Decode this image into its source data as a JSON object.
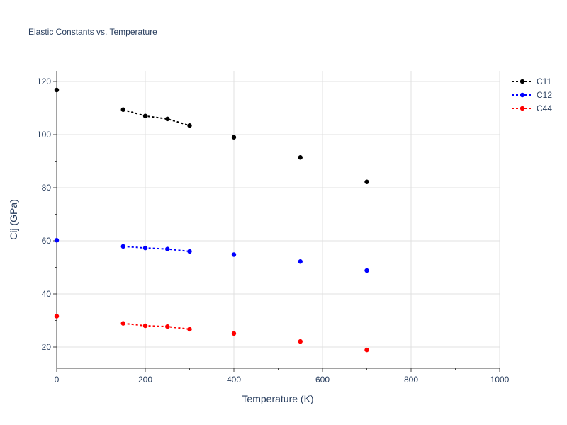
{
  "chart_data": {
    "type": "line",
    "title": "Elastic Constants vs. Temperature",
    "xlabel": "Temperature (K)",
    "ylabel": "Cij (GPa)",
    "xlim": [
      0,
      1000
    ],
    "ylim": [
      12,
      124
    ],
    "xticks": [
      0,
      200,
      400,
      600,
      800,
      1000
    ],
    "yticks": [
      20,
      40,
      60,
      80,
      100,
      120
    ],
    "grid": true,
    "legend_position": "top-right",
    "series": [
      {
        "name": "C11",
        "color": "#000000",
        "line_style": "dotted",
        "points": [
          {
            "x": 0,
            "y": 116.8,
            "connected": false
          },
          {
            "x": 150,
            "y": 109.4,
            "connected": true
          },
          {
            "x": 200,
            "y": 107.0,
            "connected": true
          },
          {
            "x": 250,
            "y": 105.9,
            "connected": true
          },
          {
            "x": 300,
            "y": 103.4,
            "connected": true
          },
          {
            "x": 400,
            "y": 99.0,
            "connected": false
          },
          {
            "x": 550,
            "y": 91.4,
            "connected": false
          },
          {
            "x": 700,
            "y": 82.2,
            "connected": false
          }
        ]
      },
      {
        "name": "C12",
        "color": "#0000ff",
        "line_style": "dotted",
        "points": [
          {
            "x": 0,
            "y": 60.2,
            "connected": false
          },
          {
            "x": 150,
            "y": 57.9,
            "connected": true
          },
          {
            "x": 200,
            "y": 57.3,
            "connected": true
          },
          {
            "x": 250,
            "y": 56.9,
            "connected": true
          },
          {
            "x": 300,
            "y": 56.0,
            "connected": true
          },
          {
            "x": 400,
            "y": 54.8,
            "connected": false
          },
          {
            "x": 550,
            "y": 52.2,
            "connected": false
          },
          {
            "x": 700,
            "y": 48.8,
            "connected": false
          }
        ]
      },
      {
        "name": "C44",
        "color": "#ff0000",
        "line_style": "dotted",
        "points": [
          {
            "x": 0,
            "y": 31.6,
            "connected": false
          },
          {
            "x": 150,
            "y": 28.9,
            "connected": true
          },
          {
            "x": 200,
            "y": 28.0,
            "connected": true
          },
          {
            "x": 250,
            "y": 27.7,
            "connected": true
          },
          {
            "x": 300,
            "y": 26.7,
            "connected": true
          },
          {
            "x": 400,
            "y": 25.1,
            "connected": false
          },
          {
            "x": 550,
            "y": 22.1,
            "connected": false
          },
          {
            "x": 700,
            "y": 18.9,
            "connected": false
          }
        ]
      }
    ]
  }
}
